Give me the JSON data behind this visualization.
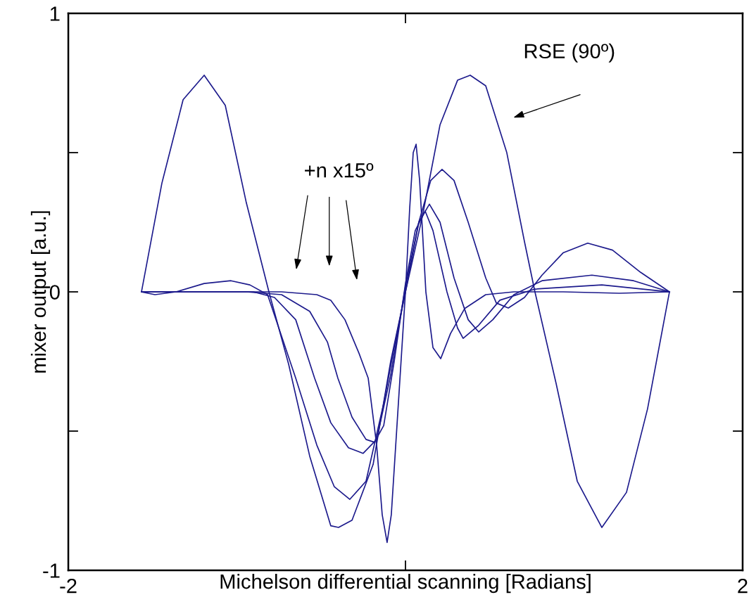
{
  "chart_data": {
    "type": "line",
    "xlabel": "Michelson differential scanning [Radians]",
    "ylabel": "mixer output [a.u.]",
    "xlim": [
      -2,
      2
    ],
    "ylim": [
      -1,
      1
    ],
    "xticks": [
      -2,
      {
        "value": 0,
        "label": null
      },
      2
    ],
    "yticks": [
      -1,
      {
        "value": -0.5,
        "label": null
      },
      0,
      {
        "value": 0.5,
        "label": null
      },
      1
    ],
    "grid": false,
    "marker": "none",
    "line_style": "solid",
    "annotations": [
      "RSE (90º)",
      "+n x15º"
    ],
    "series": [
      {
        "color": "#1c1a8c",
        "x": [
          -1.566,
          -1.445,
          -1.319,
          -1.194,
          -1.069,
          -0.944,
          -0.81,
          -0.693,
          -0.568,
          -0.443,
          -0.397,
          -0.317,
          -0.192,
          -0.088,
          0,
          0.1,
          0.205,
          0.309,
          0.384,
          0.476,
          0.601,
          0.706,
          0.768,
          0.894,
          1.019,
          1.165,
          1.311,
          1.436,
          1.566
        ],
        "values": [
          0,
          0.39,
          0.69,
          0.778,
          0.67,
          0.32,
          0,
          -0.26,
          -0.59,
          -0.84,
          -0.846,
          -0.82,
          -0.62,
          -0.25,
          0,
          0.27,
          0.6,
          0.76,
          0.778,
          0.74,
          0.5,
          0.18,
          0,
          -0.33,
          -0.68,
          -0.846,
          -0.72,
          -0.42,
          0
        ]
      },
      {
        "color": "#1c1a8c",
        "x": [
          -1.566,
          -1.486,
          -1.361,
          -1.194,
          -1.035,
          -0.923,
          -0.818,
          -0.651,
          -0.526,
          -0.422,
          -0.33,
          -0.234,
          -0.129,
          -0.067,
          0,
          0.079,
          0.15,
          0.217,
          0.288,
          0.372,
          0.476,
          0.539,
          0.61,
          0.706,
          0.81,
          0.935,
          1.081,
          1.228,
          1.395,
          1.566
        ],
        "values": [
          0,
          -0.01,
          0.0,
          0.03,
          0.04,
          0.025,
          -0.01,
          -0.31,
          -0.55,
          -0.7,
          -0.745,
          -0.68,
          -0.4,
          -0.2,
          0,
          0.25,
          0.4,
          0.44,
          0.4,
          0.25,
          0.05,
          -0.04,
          -0.058,
          -0.02,
          0.06,
          0.14,
          0.175,
          0.15,
          0.07,
          0
        ]
      },
      {
        "color": "#1c1a8c",
        "x": [
          -1.566,
          -1.152,
          -0.902,
          -0.777,
          -0.651,
          -0.539,
          -0.443,
          -0.338,
          -0.251,
          -0.171,
          -0.088,
          0,
          0.079,
          0.142,
          0.205,
          0.288,
          0.372,
          0.434,
          0.518,
          0.643,
          0.81,
          1.106,
          1.353,
          1.566
        ],
        "values": [
          0,
          0.0,
          0.0,
          -0.02,
          -0.1,
          -0.31,
          -0.47,
          -0.56,
          -0.58,
          -0.53,
          -0.3,
          0.02,
          0.25,
          0.315,
          0.25,
          0.05,
          -0.1,
          -0.144,
          -0.1,
          -0.01,
          0.04,
          0.06,
          0.04,
          0
        ]
      },
      {
        "color": "#1c1a8c",
        "x": [
          -1.566,
          -0.944,
          -0.735,
          -0.568,
          -0.463,
          -0.401,
          -0.317,
          -0.234,
          -0.184,
          -0.129,
          -0.067,
          0,
          0.058,
          0.117,
          0.163,
          0.246,
          0.309,
          0.342,
          0.434,
          0.56,
          0.768,
          1.165,
          1.566
        ],
        "values": [
          0,
          0,
          -0.01,
          -0.07,
          -0.18,
          -0.31,
          -0.45,
          -0.53,
          -0.54,
          -0.48,
          -0.25,
          0.03,
          0.22,
          0.29,
          0.22,
          0.0,
          -0.13,
          -0.167,
          -0.12,
          -0.03,
          0.01,
          0.025,
          0
        ]
      },
      {
        "color": "#1c1a8c",
        "x": [
          -1.566,
          -0.735,
          -0.526,
          -0.443,
          -0.359,
          -0.276,
          -0.221,
          -0.171,
          -0.138,
          -0.109,
          -0.084,
          -0.042,
          0,
          0.025,
          0.046,
          0.063,
          0.084,
          0.121,
          0.163,
          0.209,
          0.267,
          0.351,
          0.476,
          0.643,
          0.935,
          1.269,
          1.566
        ],
        "values": [
          0,
          0,
          -0.01,
          -0.03,
          -0.1,
          -0.22,
          -0.31,
          -0.55,
          -0.8,
          -0.9,
          -0.8,
          -0.4,
          0,
          0.3,
          0.5,
          0.53,
          0.4,
          0.0,
          -0.2,
          -0.24,
          -0.15,
          -0.06,
          -0.01,
          0.0,
          0.0,
          -0.005,
          0
        ]
      }
    ]
  }
}
